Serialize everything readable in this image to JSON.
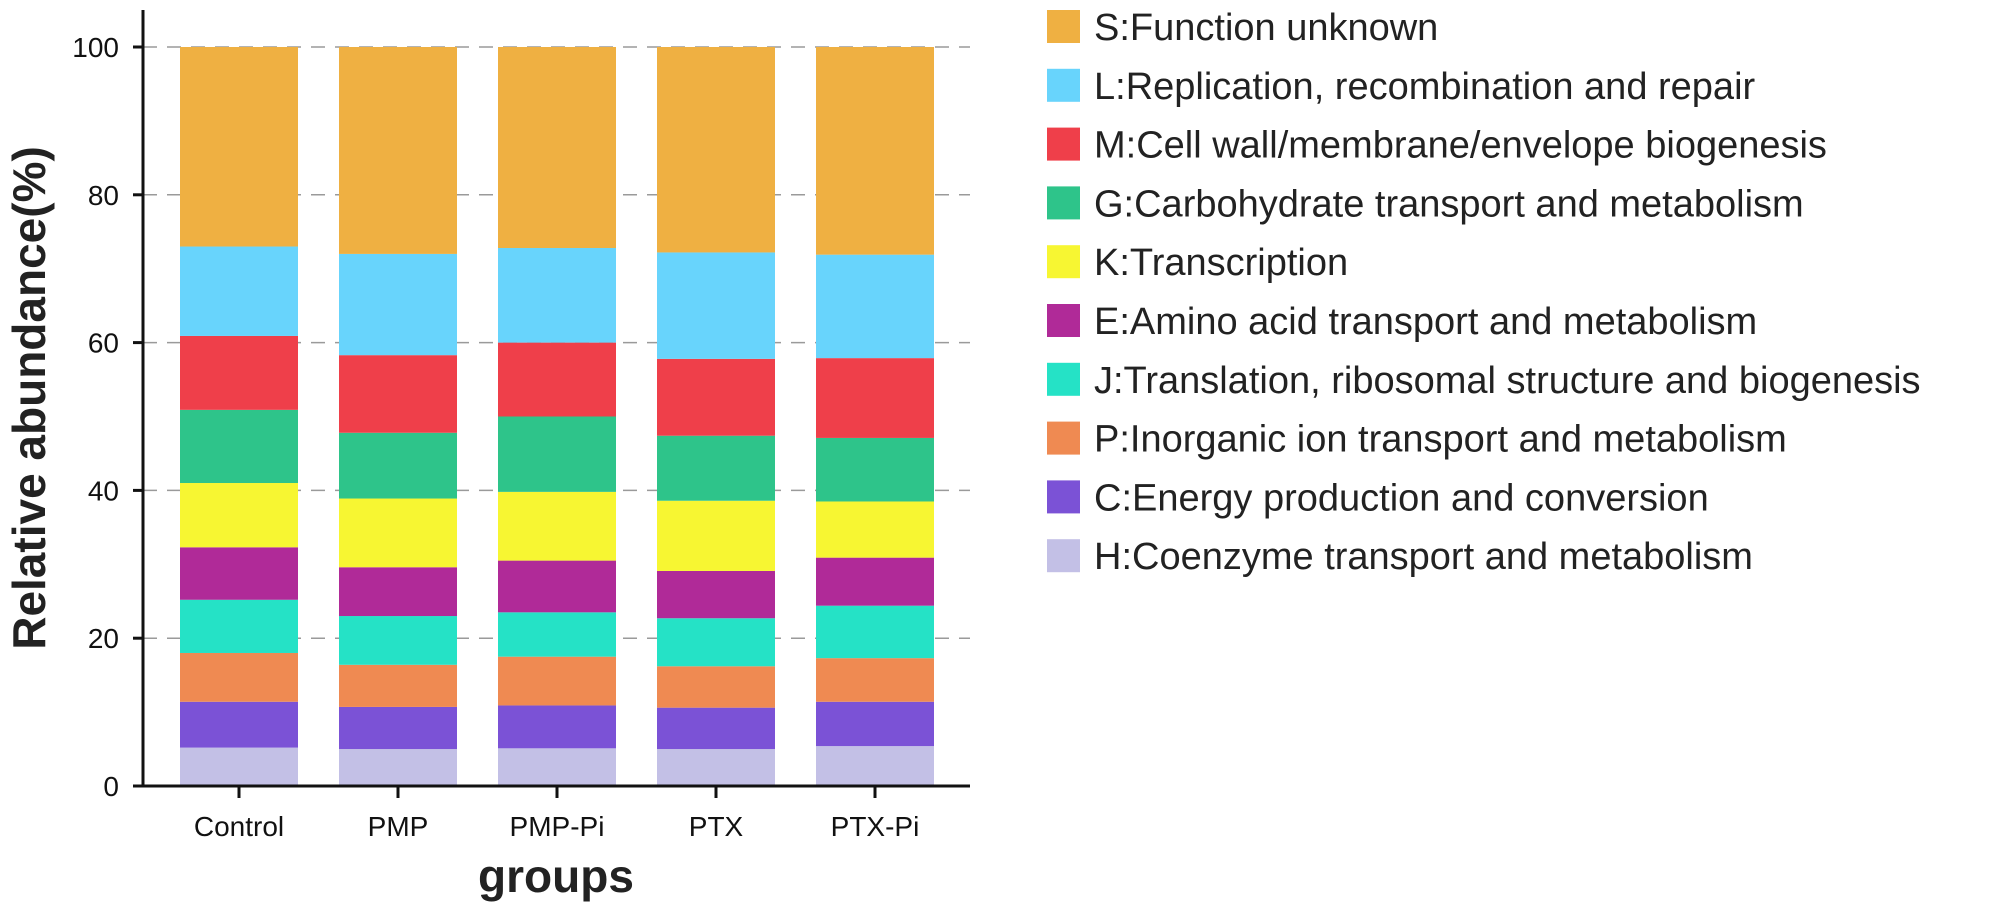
{
  "chart_data": {
    "type": "bar",
    "stacked": true,
    "xlabel": "groups",
    "ylabel": "Relative abundance(%)",
    "ylim": [
      0,
      100
    ],
    "yticks": [
      0,
      20,
      40,
      60,
      80,
      100
    ],
    "grid": "horizontal-dashed",
    "legend_position": "right",
    "categories": [
      "Control",
      "PMP",
      "PMP-Pi",
      "PTX",
      "PTX-Pi"
    ],
    "series": [
      {
        "name": "H:Coenzyme transport and metabolism",
        "color": "#c3c0e6",
        "values": [
          5.2,
          5.0,
          5.1,
          5.0,
          5.4
        ]
      },
      {
        "name": "C:Energy production and conversion",
        "color": "#7b52d6",
        "values": [
          6.2,
          5.7,
          5.8,
          5.6,
          6.0
        ]
      },
      {
        "name": "P:Inorganic ion transport and metabolism",
        "color": "#ef8a52",
        "values": [
          6.6,
          5.7,
          6.6,
          5.6,
          5.9
        ]
      },
      {
        "name": "J:Translation, ribosomal structure and biogenesis",
        "color": "#25e2c6",
        "values": [
          7.2,
          6.6,
          6.0,
          6.5,
          7.1
        ]
      },
      {
        "name": "E:Amino acid transport and metabolism",
        "color": "#b02a98",
        "values": [
          7.1,
          6.6,
          7.0,
          6.4,
          6.5
        ]
      },
      {
        "name": "K:Transcription",
        "color": "#f7f632",
        "values": [
          8.7,
          9.3,
          9.3,
          9.5,
          7.6
        ]
      },
      {
        "name": "G:Carbohydrate transport and metabolism",
        "color": "#2ec48a",
        "values": [
          9.9,
          8.9,
          10.2,
          8.8,
          8.6
        ]
      },
      {
        "name": "M:Cell wall/membrane/envelope biogenesis",
        "color": "#ef3f4a",
        "values": [
          10.0,
          10.5,
          10.0,
          10.4,
          10.8
        ]
      },
      {
        "name": "L:Replication, recombination and repair",
        "color": "#68d4fc",
        "values": [
          12.1,
          13.7,
          12.8,
          14.4,
          14.0
        ]
      },
      {
        "name": "S:Function unknown",
        "color": "#efb042",
        "values": [
          27.0,
          28.0,
          27.2,
          27.8,
          28.1
        ]
      }
    ]
  }
}
